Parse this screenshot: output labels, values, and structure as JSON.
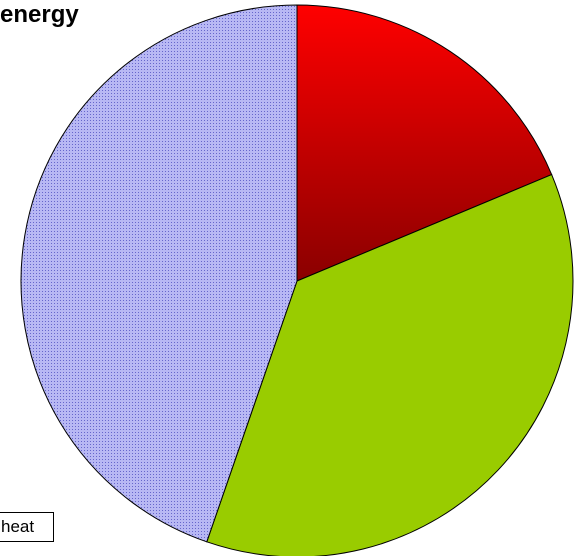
{
  "chart_data": {
    "type": "pie",
    "title": "energy",
    "slices": [
      {
        "label": "",
        "value": 18.7,
        "color": "#ff0000",
        "fill": "gradient-red"
      },
      {
        "label": "",
        "value": 36.6,
        "color": "#99cc00",
        "fill": "solid"
      },
      {
        "label": "",
        "value": 44.7,
        "color": "#aaaaee",
        "fill": "dotted-blue"
      }
    ],
    "legend": {
      "visible_text": "heat",
      "position": "bottom-left"
    }
  }
}
